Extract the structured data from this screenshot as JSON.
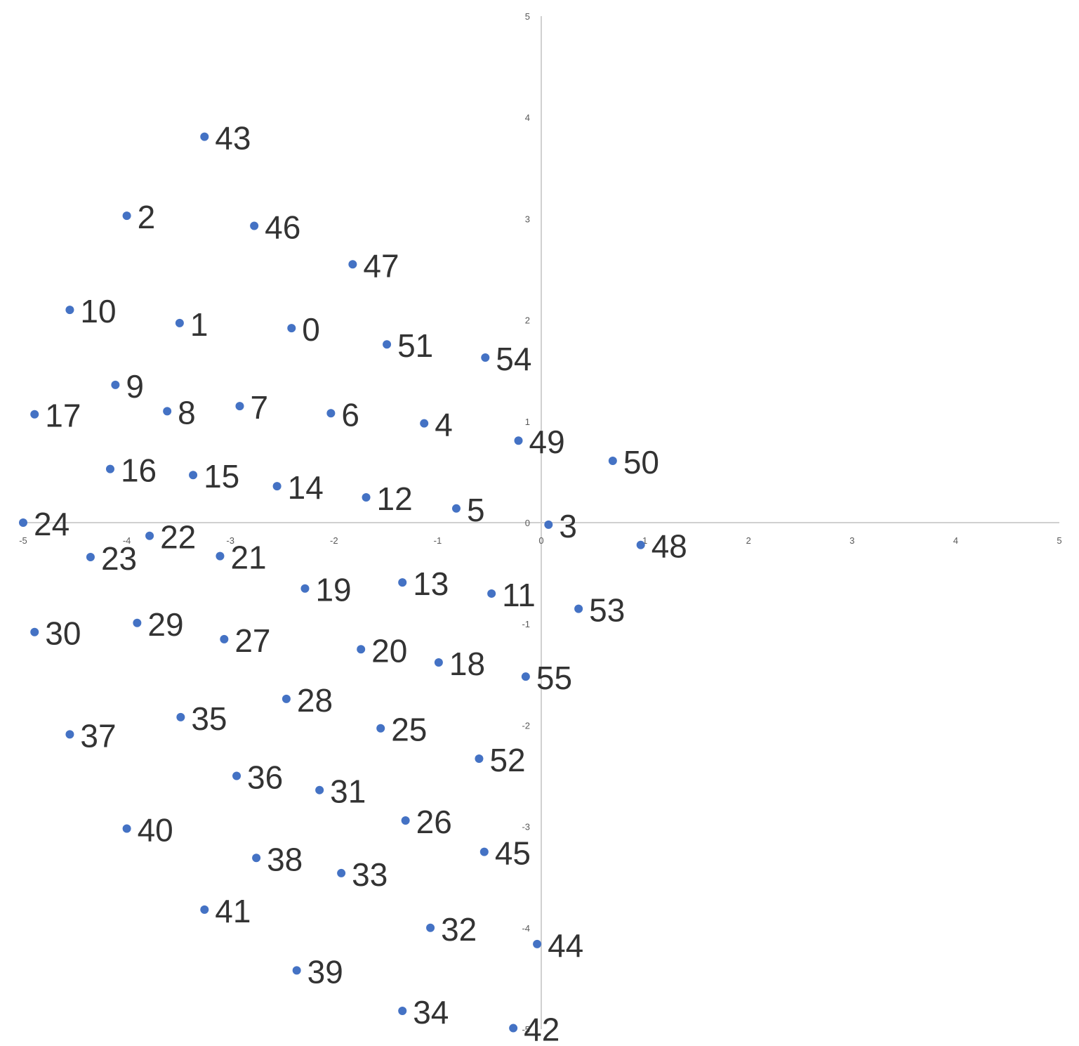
{
  "chart_data": {
    "type": "scatter",
    "title": "",
    "xlabel": "",
    "ylabel": "",
    "xlim": [
      -5,
      5
    ],
    "ylim": [
      -5,
      5
    ],
    "x_ticks": [
      -5,
      -4,
      -3,
      -2,
      -1,
      0,
      1,
      2,
      3,
      4,
      5
    ],
    "y_ticks": [
      -5,
      -4,
      -3,
      -2,
      -1,
      0,
      1,
      2,
      3,
      4,
      5
    ],
    "grid": false,
    "legend": "none",
    "point_color": "#4472c4",
    "axis_color": "#d0d0d0",
    "points": [
      {
        "label": "0",
        "x": -2.41,
        "y": 1.92
      },
      {
        "label": "1",
        "x": -3.49,
        "y": 1.97
      },
      {
        "label": "2",
        "x": -4.0,
        "y": 3.03
      },
      {
        "label": "3",
        "x": 0.07,
        "y": -0.02
      },
      {
        "label": "4",
        "x": -1.13,
        "y": 0.98
      },
      {
        "label": "5",
        "x": -0.82,
        "y": 0.14
      },
      {
        "label": "6",
        "x": -2.03,
        "y": 1.08
      },
      {
        "label": "7",
        "x": -2.91,
        "y": 1.15
      },
      {
        "label": "8",
        "x": -3.61,
        "y": 1.1
      },
      {
        "label": "9",
        "x": -4.11,
        "y": 1.36
      },
      {
        "label": "10",
        "x": -4.55,
        "y": 2.1
      },
      {
        "label": "11",
        "x": -0.48,
        "y": -0.7
      },
      {
        "label": "12",
        "x": -1.69,
        "y": 0.25
      },
      {
        "label": "13",
        "x": -1.34,
        "y": -0.59
      },
      {
        "label": "14",
        "x": -2.55,
        "y": 0.36
      },
      {
        "label": "15",
        "x": -3.36,
        "y": 0.47
      },
      {
        "label": "16",
        "x": -4.16,
        "y": 0.53
      },
      {
        "label": "17",
        "x": -4.89,
        "y": 1.07
      },
      {
        "label": "18",
        "x": -0.99,
        "y": -1.38
      },
      {
        "label": "19",
        "x": -2.28,
        "y": -0.65
      },
      {
        "label": "20",
        "x": -1.74,
        "y": -1.25
      },
      {
        "label": "21",
        "x": -3.1,
        "y": -0.33
      },
      {
        "label": "22",
        "x": -3.78,
        "y": -0.13
      },
      {
        "label": "23",
        "x": -4.35,
        "y": -0.34
      },
      {
        "label": "24",
        "x": -5.0,
        "y": 0.0
      },
      {
        "label": "25",
        "x": -1.55,
        "y": -2.03
      },
      {
        "label": "26",
        "x": -1.31,
        "y": -2.94
      },
      {
        "label": "27",
        "x": -3.06,
        "y": -1.15
      },
      {
        "label": "28",
        "x": -2.46,
        "y": -1.74
      },
      {
        "label": "29",
        "x": -3.9,
        "y": -0.99
      },
      {
        "label": "30",
        "x": -4.89,
        "y": -1.08
      },
      {
        "label": "31",
        "x": -2.14,
        "y": -2.64
      },
      {
        "label": "32",
        "x": -1.07,
        "y": -4.0
      },
      {
        "label": "33",
        "x": -1.93,
        "y": -3.46
      },
      {
        "label": "34",
        "x": -1.34,
        "y": -4.82
      },
      {
        "label": "35",
        "x": -3.48,
        "y": -1.92
      },
      {
        "label": "36",
        "x": -2.94,
        "y": -2.5
      },
      {
        "label": "37",
        "x": -4.55,
        "y": -2.09
      },
      {
        "label": "38",
        "x": -2.75,
        "y": -3.31
      },
      {
        "label": "39",
        "x": -2.36,
        "y": -4.42
      },
      {
        "label": "40",
        "x": -4.0,
        "y": -3.02
      },
      {
        "label": "41",
        "x": -3.25,
        "y": -3.82
      },
      {
        "label": "42",
        "x": -0.27,
        "y": -4.99
      },
      {
        "label": "43",
        "x": -3.25,
        "y": 3.81
      },
      {
        "label": "44",
        "x": -0.04,
        "y": -4.16
      },
      {
        "label": "45",
        "x": -0.55,
        "y": -3.25
      },
      {
        "label": "46",
        "x": -2.77,
        "y": 2.93
      },
      {
        "label": "47",
        "x": -1.82,
        "y": 2.55
      },
      {
        "label": "48",
        "x": 0.96,
        "y": -0.22
      },
      {
        "label": "49",
        "x": -0.22,
        "y": 0.81
      },
      {
        "label": "50",
        "x": 0.69,
        "y": 0.61
      },
      {
        "label": "51",
        "x": -1.49,
        "y": 1.76
      },
      {
        "label": "52",
        "x": -0.6,
        "y": -2.33
      },
      {
        "label": "53",
        "x": 0.36,
        "y": -0.85
      },
      {
        "label": "54",
        "x": -0.54,
        "y": 1.63
      },
      {
        "label": "55",
        "x": -0.15,
        "y": -1.52
      }
    ]
  }
}
